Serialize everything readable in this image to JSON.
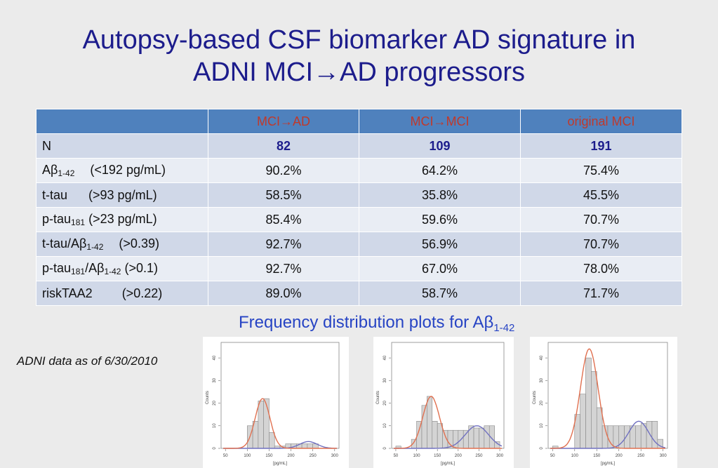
{
  "title": {
    "line1": "Autopsy-based CSF biomarker AD signature in",
    "line2": "ADNI MCI→AD progressors"
  },
  "table": {
    "headers": [
      "",
      "MCI→AD",
      "MCI→MCI",
      "original MCI"
    ],
    "n_row": {
      "label": "N",
      "values": [
        "82",
        "109",
        "191"
      ]
    },
    "rows": [
      {
        "base": "A",
        "greek": "β",
        "sub": "1-42",
        "tail": "(<192 pg/mL)",
        "values": [
          "90.2%",
          "64.2%",
          "75.4%"
        ]
      },
      {
        "base": "t-tau",
        "greek": "",
        "sub": "",
        "tail": "(>93 pg/mL)",
        "values": [
          "58.5%",
          "35.8%",
          "45.5%"
        ]
      },
      {
        "base": "p-tau",
        "greek": "",
        "sub": "181",
        "tail": "(>23 pg/mL)",
        "values": [
          "85.4%",
          "59.6%",
          "70.7%"
        ]
      },
      {
        "base": "t-tau/A",
        "greek": "β",
        "sub": "1-42",
        "tail": "(>0.39)",
        "values": [
          "92.7%",
          "56.9%",
          "70.7%"
        ]
      },
      {
        "base": "p-tau",
        "greek": "",
        "sub": "181",
        "mid": "/A",
        "greek2": "β",
        "sub2": "1-42",
        "tail": "(>0.1)",
        "values": [
          "92.7%",
          "67.0%",
          "78.0%"
        ]
      },
      {
        "base": "riskTAA2",
        "greek": "",
        "sub": "",
        "tail": "(>0.22)",
        "values": [
          "89.0%",
          "58.7%",
          "71.7%"
        ]
      }
    ]
  },
  "freq_caption": {
    "text": "Frequency distribution plots for A",
    "greek": "β",
    "sub": "1-42"
  },
  "note": "ADNI data as of 6/30/2010",
  "colors": {
    "title": "#1c1c8c",
    "header_bg": "#4f81bd",
    "header_text": "#c0392b",
    "row_odd": "#d0d8e8",
    "row_even": "#e9edf4",
    "caption": "#2744c4",
    "fit_red": "#e07050",
    "fit_blue": "#7070c0",
    "bar": "#d4d4d4"
  },
  "chart_data": [
    {
      "type": "bar",
      "xlabel": "[pg/mL]",
      "ylabel": "Counts",
      "xticks": [
        50,
        100,
        150,
        200,
        250,
        300
      ],
      "yticks": [
        0,
        10,
        20,
        30,
        40
      ],
      "xlim": [
        40,
        310
      ],
      "ylim": [
        0,
        45
      ],
      "bin_starts": [
        100,
        112.5,
        125,
        137.5,
        150,
        162.5,
        175,
        187.5,
        200,
        212.5,
        225,
        237.5,
        250,
        262.5
      ],
      "bin_width": 12.5,
      "values": [
        10,
        12,
        21,
        22,
        7,
        1,
        1,
        2,
        2,
        2,
        2,
        2,
        2,
        0
      ],
      "red_curve": {
        "mean": 135,
        "sd": 17,
        "peak": 22
      },
      "blue_curve": {
        "mean": 240,
        "sd": 20,
        "peak": 3
      }
    },
    {
      "type": "bar",
      "xlabel": "[pg/mL]",
      "ylabel": "Counts",
      "xticks": [
        50,
        100,
        150,
        200,
        250,
        300
      ],
      "yticks": [
        0,
        10,
        20,
        30,
        40
      ],
      "xlim": [
        40,
        310
      ],
      "ylim": [
        0,
        45
      ],
      "bin_starts": [
        50,
        87.5,
        100,
        112.5,
        125,
        137.5,
        150,
        162.5,
        175,
        187.5,
        200,
        212.5,
        225,
        237.5,
        250,
        262.5,
        275,
        287.5
      ],
      "bin_width": 12.5,
      "values": [
        1,
        4,
        12,
        19,
        23,
        12,
        11,
        8,
        8,
        8,
        8,
        8,
        10,
        9,
        9,
        10,
        10,
        3
      ],
      "red_curve": {
        "mean": 135,
        "sd": 20,
        "peak": 23
      },
      "blue_curve": {
        "mean": 245,
        "sd": 28,
        "peak": 10
      }
    },
    {
      "type": "bar",
      "xlabel": "[pg/mL]",
      "ylabel": "Counts",
      "xticks": [
        50,
        100,
        150,
        200,
        250,
        300
      ],
      "yticks": [
        0,
        10,
        20,
        30,
        40
      ],
      "xlim": [
        40,
        310
      ],
      "ylim": [
        0,
        45
      ],
      "bin_starts": [
        50,
        100,
        112.5,
        125,
        137.5,
        150,
        162.5,
        175,
        187.5,
        200,
        212.5,
        225,
        237.5,
        250,
        262.5,
        275,
        287.5
      ],
      "bin_width": 12.5,
      "values": [
        1,
        15,
        24,
        40,
        34,
        18,
        10,
        10,
        10,
        10,
        10,
        10,
        10,
        11,
        12,
        12,
        4
      ],
      "red_curve": {
        "mean": 133,
        "sd": 20,
        "peak": 44
      },
      "blue_curve": {
        "mean": 245,
        "sd": 22,
        "peak": 12
      }
    }
  ]
}
